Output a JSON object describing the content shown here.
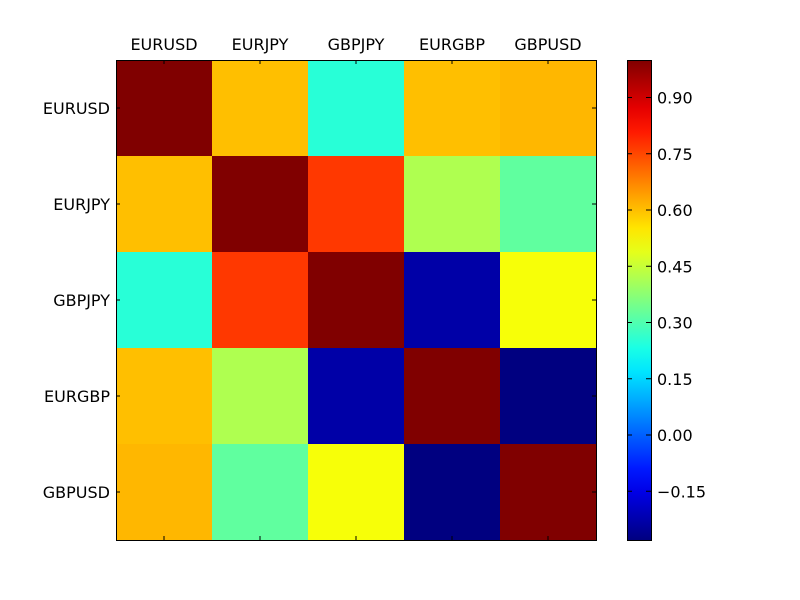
{
  "chart_data": {
    "type": "heatmap",
    "x_labels": [
      "EURUSD",
      "EURJPY",
      "GBPJPY",
      "EURGBP",
      "GBPUSD"
    ],
    "y_labels": [
      "EURUSD",
      "EURJPY",
      "GBPJPY",
      "EURGBP",
      "GBPUSD"
    ],
    "values": [
      [
        1.0,
        0.6,
        0.25,
        0.6,
        0.61
      ],
      [
        0.6,
        1.0,
        0.77,
        0.42,
        0.32
      ],
      [
        0.25,
        0.77,
        1.0,
        -0.23,
        0.51
      ],
      [
        0.6,
        0.42,
        -0.23,
        1.0,
        -0.28
      ],
      [
        0.61,
        0.32,
        0.51,
        -0.28,
        1.0
      ]
    ],
    "colormap": "jet",
    "vmin": -0.28,
    "vmax": 1.0,
    "colorbar": {
      "ticks": [
        -0.15,
        0.0,
        0.15,
        0.3,
        0.45,
        0.6,
        0.75,
        0.9
      ],
      "tick_labels": [
        "−0.15",
        "0.00",
        "0.15",
        "0.30",
        "0.45",
        "0.60",
        "0.75",
        "0.90"
      ]
    },
    "x_tick_position": "top",
    "grid": false
  }
}
